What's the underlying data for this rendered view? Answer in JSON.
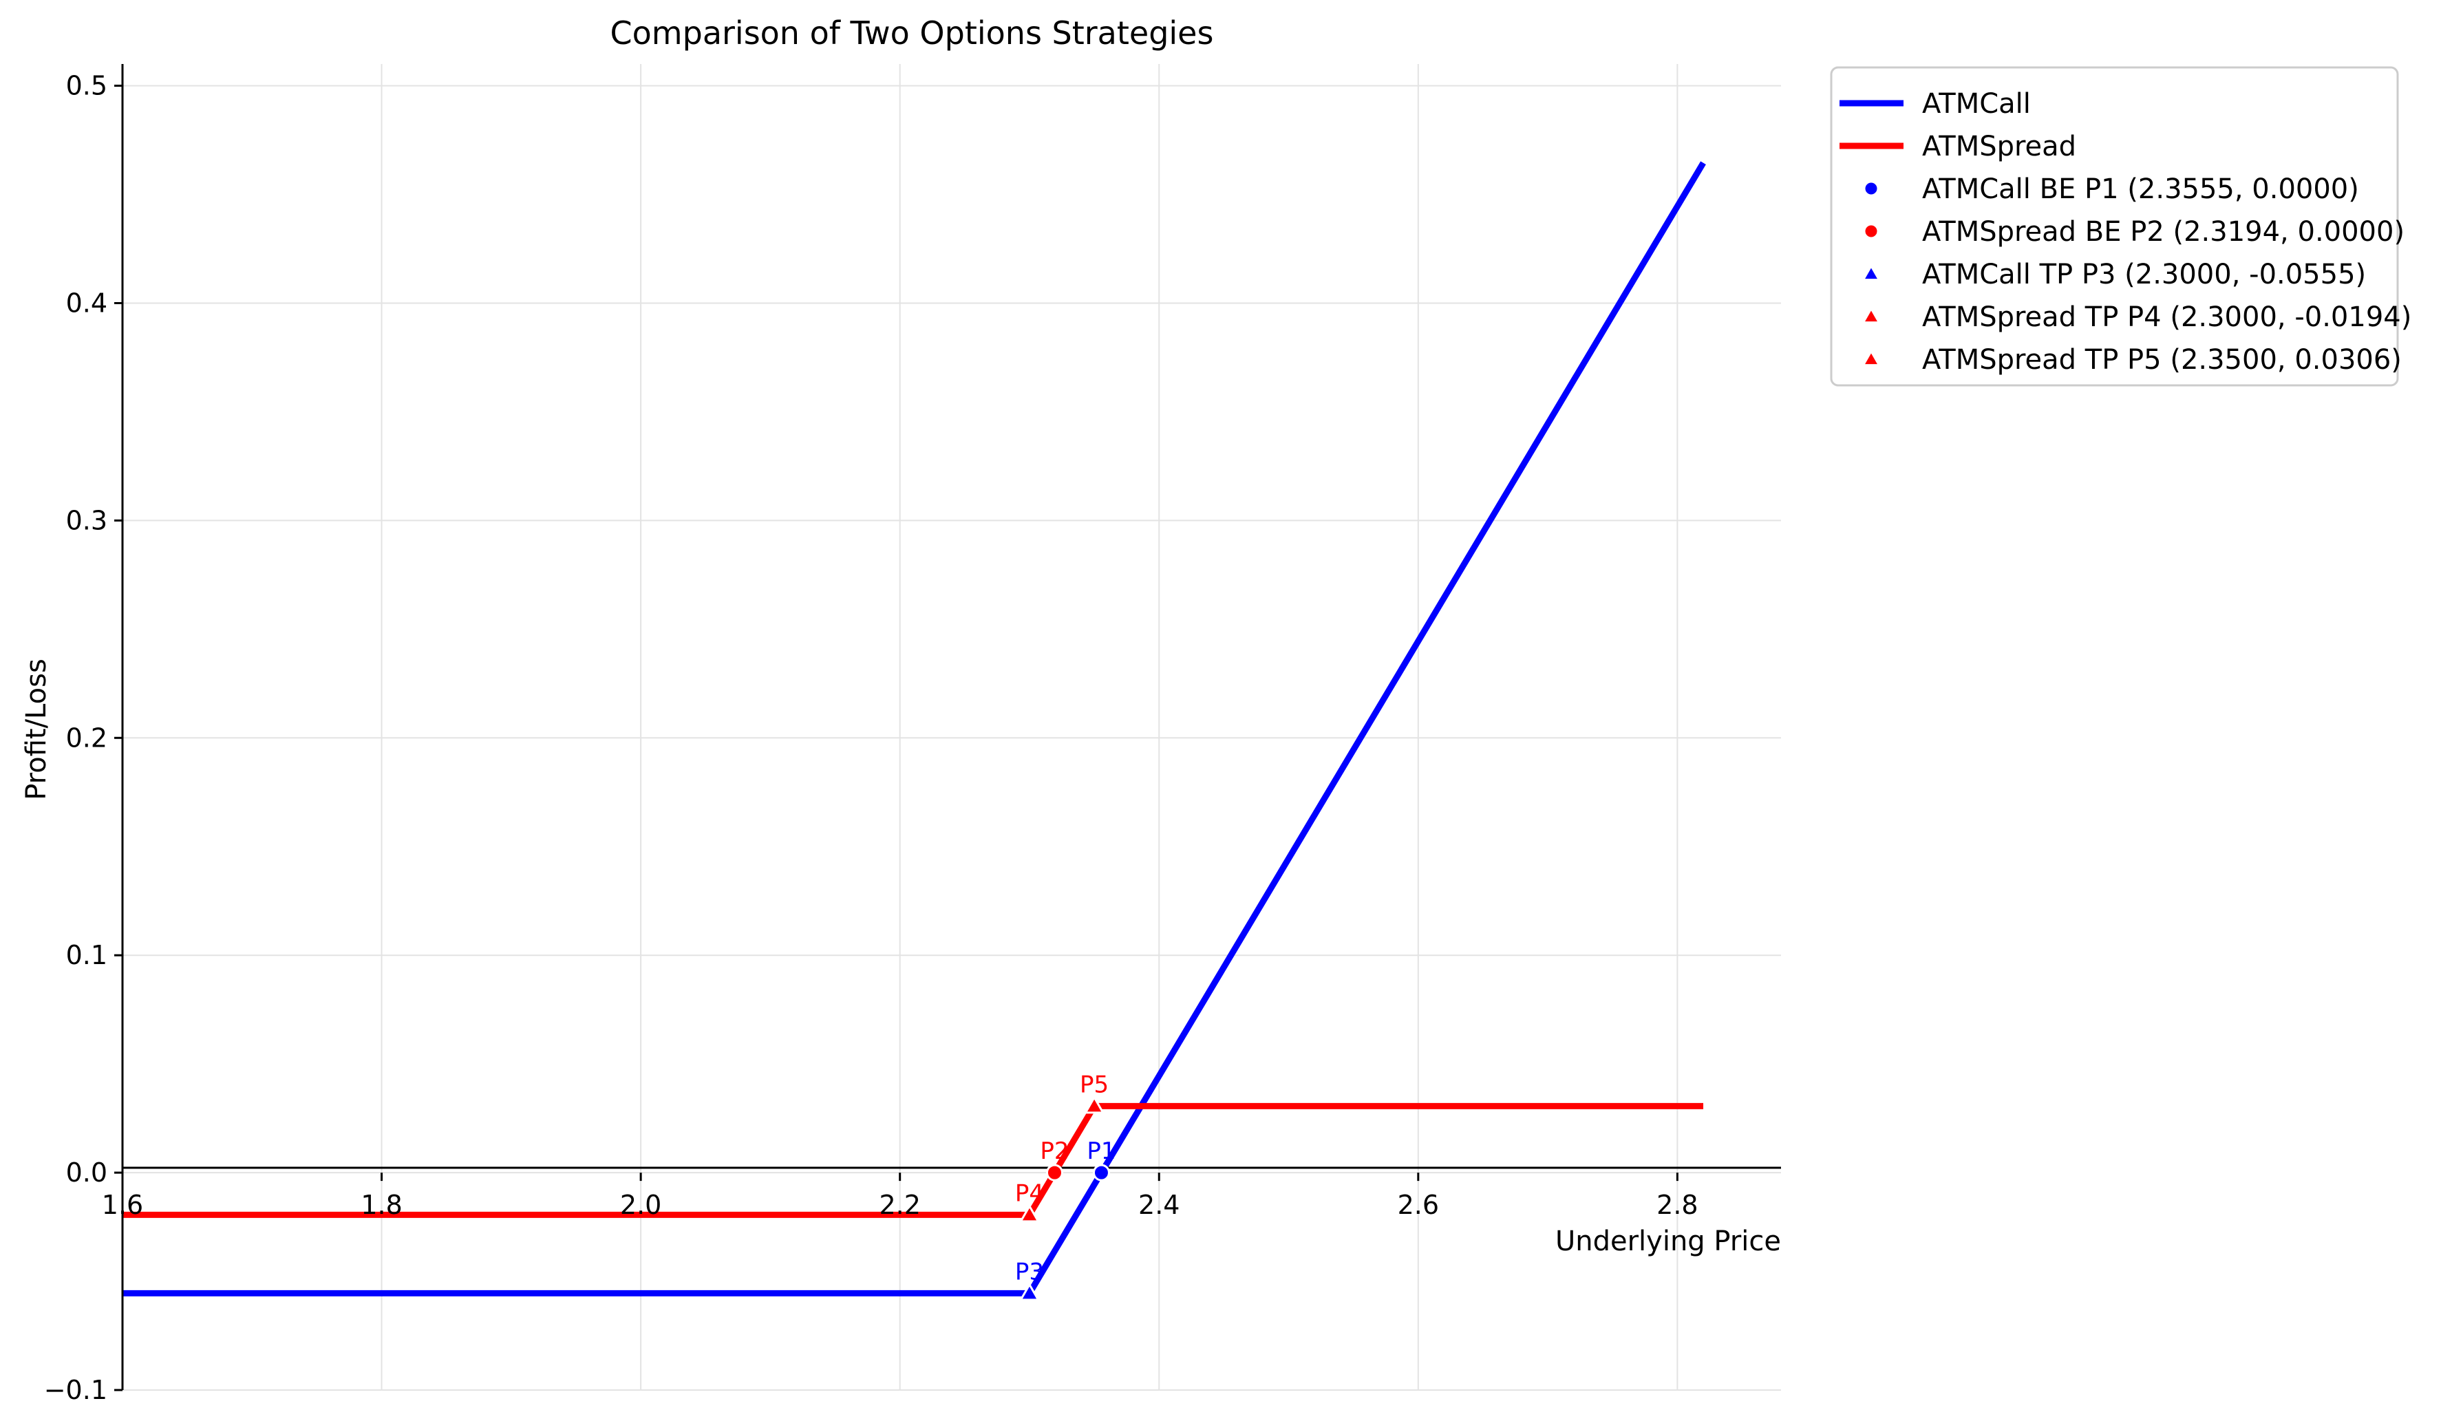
{
  "chart_data": {
    "type": "line",
    "title": "Comparison of Two Options Strategies",
    "xlabel": "Underlying Price",
    "ylabel": "Profit/Loss",
    "xlim": [
      1.6,
      2.88
    ],
    "ylim": [
      -0.1,
      0.51
    ],
    "xticks": [
      {
        "value": 1.6,
        "label": "1.6"
      },
      {
        "value": 1.8,
        "label": "1.8"
      },
      {
        "value": 2.0,
        "label": "2.0"
      },
      {
        "value": 2.2,
        "label": "2.2"
      },
      {
        "value": 2.4,
        "label": "2.4"
      },
      {
        "value": 2.6,
        "label": "2.6"
      },
      {
        "value": 2.8,
        "label": "2.8"
      }
    ],
    "yticks": [
      {
        "value": -0.1,
        "label": "−0.1"
      },
      {
        "value": 0.0,
        "label": "0.0"
      },
      {
        "value": 0.1,
        "label": "0.1"
      },
      {
        "value": 0.2,
        "label": "0.2"
      },
      {
        "value": 0.3,
        "label": "0.3"
      },
      {
        "value": 0.4,
        "label": "0.4"
      },
      {
        "value": 0.5,
        "label": "0.5"
      }
    ],
    "grid": true,
    "legend_position": "outside-top-right",
    "series": [
      {
        "name": "ATMCall",
        "color": "#0000ff",
        "points": [
          [
            1.6,
            -0.0555
          ],
          [
            2.3,
            -0.0555
          ],
          [
            2.82,
            0.4645
          ]
        ]
      },
      {
        "name": "ATMSpread",
        "color": "#ff0000",
        "points": [
          [
            1.6,
            -0.0194
          ],
          [
            2.3,
            -0.0194
          ],
          [
            2.35,
            0.0306
          ],
          [
            2.82,
            0.0306
          ]
        ]
      }
    ],
    "points": [
      {
        "label": "P1",
        "marker": "circle",
        "color": "#0000ff",
        "x": 2.3555,
        "y": 0.0,
        "legend": "ATMCall BE P1 (2.3555, 0.0000)"
      },
      {
        "label": "P2",
        "marker": "circle",
        "color": "#ff0000",
        "x": 2.3194,
        "y": 0.0,
        "legend": "ATMSpread BE P2 (2.3194, 0.0000)"
      },
      {
        "label": "P3",
        "marker": "triangle",
        "color": "#0000ff",
        "x": 2.3,
        "y": -0.0555,
        "legend": "ATMCall TP P3 (2.3000, -0.0555)"
      },
      {
        "label": "P4",
        "marker": "triangle",
        "color": "#ff0000",
        "x": 2.3,
        "y": -0.0194,
        "legend": "ATMSpread TP P4 (2.3000, -0.0194)"
      },
      {
        "label": "P5",
        "marker": "triangle",
        "color": "#ff0000",
        "x": 2.35,
        "y": 0.0306,
        "legend": "ATMSpread TP P5 (2.3500, 0.0306)"
      }
    ]
  }
}
